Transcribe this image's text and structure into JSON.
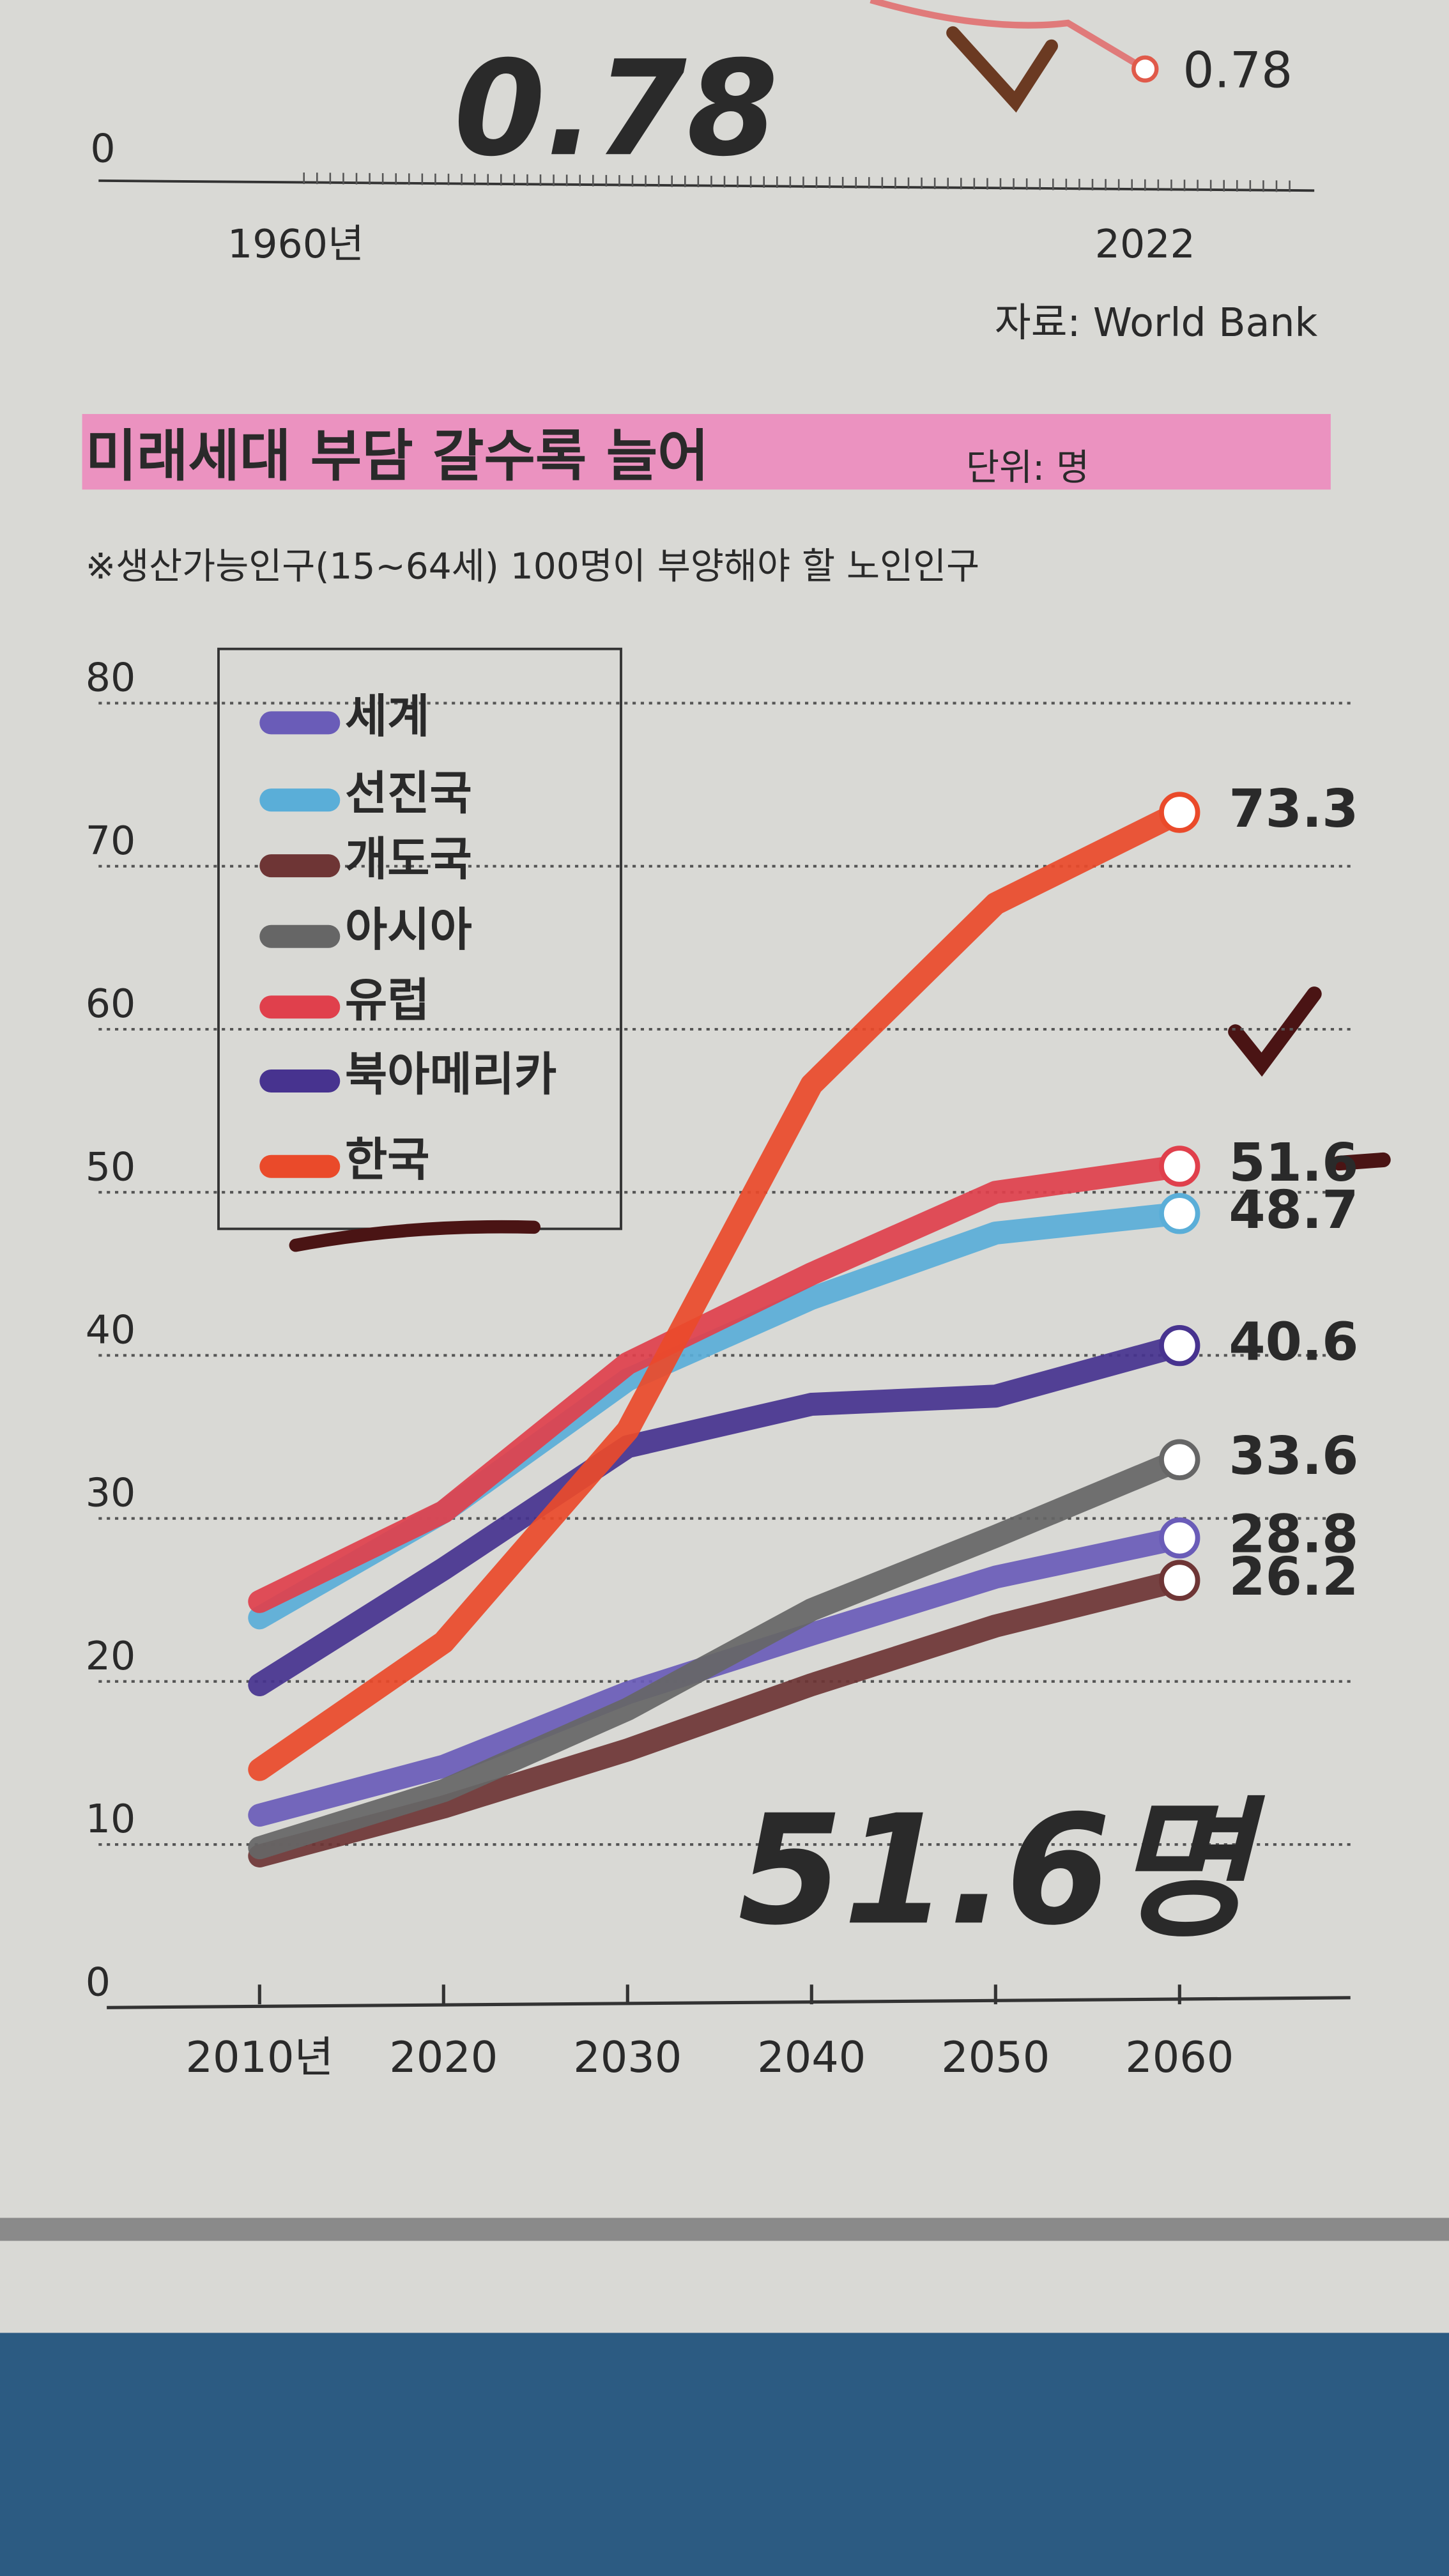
{
  "chart_data": [
    {
      "type": "line-fragment",
      "yticks": [
        0
      ],
      "x_labels": [
        "1960년",
        "2022"
      ],
      "end_value": 0.78,
      "handwritten": "0.78",
      "source": "자료: World Bank"
    },
    {
      "type": "line",
      "title": "미래세대 부담 갈수록 늘어",
      "unit": "단위: 명",
      "subtitle": "※생산가능인구(15~64세) 100명이 부양해야 할 노인인구",
      "categories": [
        "2010년",
        "2020",
        "2030",
        "2040",
        "2050",
        "2060"
      ],
      "ylim": [
        0,
        80
      ],
      "yticks": [
        0,
        10,
        20,
        30,
        40,
        50,
        60,
        70,
        80
      ],
      "grid": true,
      "handwritten": "51.6명",
      "series": [
        {
          "name": "세계",
          "color": "#6a5cb8",
          "values": [
            11.8,
            14.8,
            19.3,
            22.9,
            26.4,
            28.8
          ]
        },
        {
          "name": "선진국",
          "color": "#5aaed8",
          "values": [
            23.9,
            30.4,
            38.5,
            43.5,
            47.5,
            48.7
          ]
        },
        {
          "name": "개도국",
          "color": "#6e3535",
          "values": [
            9.3,
            12.3,
            15.8,
            19.8,
            23.4,
            26.2
          ]
        },
        {
          "name": "아시아",
          "color": "#666666",
          "values": [
            9.8,
            13.3,
            18.3,
            24.4,
            28.9,
            33.6
          ]
        },
        {
          "name": "유럽",
          "color": "#e0404c",
          "values": [
            24.9,
            30.4,
            39.5,
            45.0,
            50.0,
            51.6
          ]
        },
        {
          "name": "북아메리카",
          "color": "#47338f",
          "values": [
            19.8,
            26.9,
            34.4,
            37.0,
            37.5,
            40.6
          ]
        },
        {
          "name": "한국",
          "color": "#ea4a2a",
          "values": [
            14.6,
            22.4,
            35.4,
            56.6,
            67.7,
            73.3
          ]
        }
      ]
    }
  ]
}
